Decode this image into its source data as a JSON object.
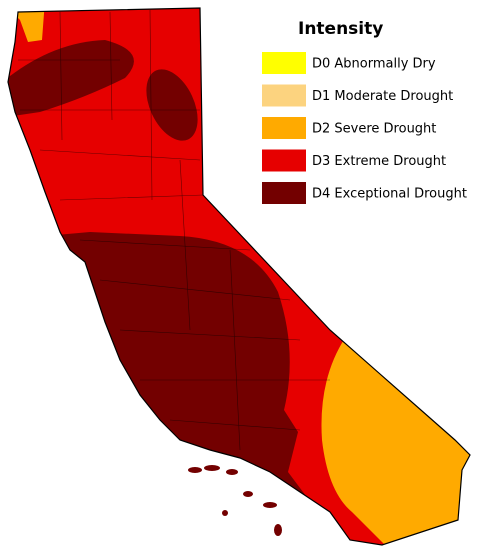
{
  "legend": {
    "title": "Intensity",
    "items": [
      {
        "label": "D0 Abnormally Dry",
        "color": "#ffff00"
      },
      {
        "label": "D1 Moderate Drought",
        "color": "#fcd37f"
      },
      {
        "label": "D2 Severe Drought",
        "color": "#ffaa00"
      },
      {
        "label": "D3 Extreme Drought",
        "color": "#e60000"
      },
      {
        "label": "D4 Exceptional Drought",
        "color": "#730000"
      }
    ]
  }
}
